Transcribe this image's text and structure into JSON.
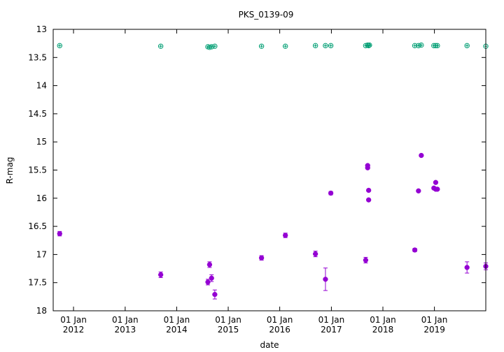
{
  "chart_data": {
    "type": "scatter",
    "title": "PKS_0139-09",
    "xlabel": "date",
    "ylabel": "R-mag",
    "ylim": [
      18,
      13
    ],
    "y_inverted": true,
    "xlim": [
      "2011-08-10",
      "2019-12-31"
    ],
    "y_ticks": [
      13,
      13.5,
      14,
      14.5,
      15,
      15.5,
      16,
      16.5,
      17,
      17.5,
      18
    ],
    "y_tick_labels": [
      "13",
      "13.5",
      "14",
      "14.5",
      "15",
      "15.5",
      "16",
      "16.5",
      "17",
      "17.5",
      "18"
    ],
    "x_ticks": [
      {
        "date": "2012-01-01",
        "day": "01 Jan",
        "year": "2012"
      },
      {
        "date": "2013-01-01",
        "day": "01 Jan",
        "year": "2013"
      },
      {
        "date": "2014-01-01",
        "day": "01 Jan",
        "year": "2014"
      },
      {
        "date": "2015-01-01",
        "day": "01 Jan",
        "year": "2015"
      },
      {
        "date": "2016-01-01",
        "day": "01 Jan",
        "year": "2016"
      },
      {
        "date": "2017-01-01",
        "day": "01 Jan",
        "year": "2017"
      },
      {
        "date": "2018-01-01",
        "day": "01 Jan",
        "year": "2018"
      },
      {
        "date": "2019-01-01",
        "day": "01 Jan",
        "year": "2019"
      }
    ],
    "grid": false,
    "series": [
      {
        "color": "#009e73",
        "marker": "circle-plus",
        "points": [
          {
            "x": "2011-09-25",
            "y": 13.29
          },
          {
            "x": "2013-09-10",
            "y": 13.3
          },
          {
            "x": "2014-08-10",
            "y": 13.31
          },
          {
            "x": "2014-08-22",
            "y": 13.32
          },
          {
            "x": "2014-09-05",
            "y": 13.31
          },
          {
            "x": "2014-09-28",
            "y": 13.3
          },
          {
            "x": "2015-08-25",
            "y": 13.3
          },
          {
            "x": "2016-02-10",
            "y": 13.3
          },
          {
            "x": "2016-09-10",
            "y": 13.29
          },
          {
            "x": "2016-11-20",
            "y": 13.29
          },
          {
            "x": "2016-12-28",
            "y": 13.29
          },
          {
            "x": "2017-09-01",
            "y": 13.29
          },
          {
            "x": "2017-09-15",
            "y": 13.28
          },
          {
            "x": "2017-09-22",
            "y": 13.29
          },
          {
            "x": "2017-09-28",
            "y": 13.28
          },
          {
            "x": "2018-08-15",
            "y": 13.29
          },
          {
            "x": "2018-09-10",
            "y": 13.29
          },
          {
            "x": "2018-09-30",
            "y": 13.28
          },
          {
            "x": "2018-12-28",
            "y": 13.29
          },
          {
            "x": "2019-01-10",
            "y": 13.29
          },
          {
            "x": "2019-01-22",
            "y": 13.29
          },
          {
            "x": "2019-08-20",
            "y": 13.29
          },
          {
            "x": "2019-12-31",
            "y": 13.3
          }
        ]
      },
      {
        "color": "#9400d3",
        "marker": "filled-circle",
        "points": [
          {
            "x": "2011-09-25",
            "y": 16.63,
            "err": 0.04
          },
          {
            "x": "2013-09-10",
            "y": 17.36,
            "err": 0.05
          },
          {
            "x": "2014-08-10",
            "y": 17.49,
            "err": 0.05
          },
          {
            "x": "2014-08-22",
            "y": 17.18,
            "err": 0.05
          },
          {
            "x": "2014-09-05",
            "y": 17.42,
            "err": 0.06
          },
          {
            "x": "2014-09-28",
            "y": 17.71,
            "err": 0.08
          },
          {
            "x": "2015-08-25",
            "y": 17.06,
            "err": 0.04
          },
          {
            "x": "2016-02-10",
            "y": 16.66,
            "err": 0.04
          },
          {
            "x": "2016-09-10",
            "y": 16.99,
            "err": 0.05
          },
          {
            "x": "2016-11-20",
            "y": 17.44,
            "err": 0.2
          },
          {
            "x": "2016-12-28",
            "y": 15.91,
            "err": 0.03
          },
          {
            "x": "2017-09-01",
            "y": 17.1,
            "err": 0.05
          },
          {
            "x": "2017-09-15",
            "y": 15.42,
            "err": 0.02
          },
          {
            "x": "2017-09-15",
            "y": 15.46,
            "err": 0.02
          },
          {
            "x": "2017-09-22",
            "y": 15.86,
            "err": 0.02
          },
          {
            "x": "2017-09-22",
            "y": 16.03,
            "err": 0.02
          },
          {
            "x": "2018-08-15",
            "y": 16.92,
            "err": 0.03
          },
          {
            "x": "2018-09-10",
            "y": 15.87,
            "err": 0.02
          },
          {
            "x": "2018-09-30",
            "y": 15.24,
            "err": 0.02
          },
          {
            "x": "2018-12-28",
            "y": 15.82,
            "err": 0.02
          },
          {
            "x": "2019-01-10",
            "y": 15.72,
            "err": 0.02
          },
          {
            "x": "2019-01-10",
            "y": 15.84,
            "err": 0.02
          },
          {
            "x": "2019-01-22",
            "y": 15.84,
            "err": 0.02
          },
          {
            "x": "2019-08-20",
            "y": 17.23,
            "err": 0.1
          },
          {
            "x": "2019-12-31",
            "y": 17.21,
            "err": 0.06
          }
        ]
      }
    ]
  }
}
